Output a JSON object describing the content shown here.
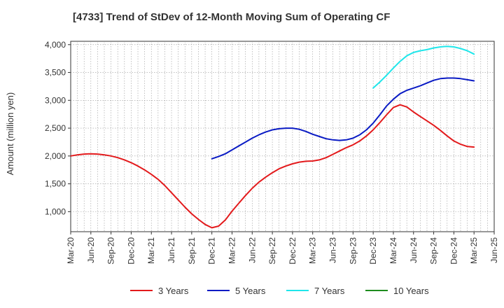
{
  "chart_data": {
    "type": "line",
    "title": "[4733]  Trend of StDev of 12-Month Moving Sum of Operating CF",
    "xlabel": "",
    "ylabel": "Amount (million yen)",
    "ylim": [
      640,
      4060
    ],
    "yticks": [
      1000,
      1500,
      2000,
      2500,
      3000,
      3500,
      4000
    ],
    "ytick_labels": [
      "1,000",
      "1,500",
      "2,000",
      "2,500",
      "3,000",
      "3,500",
      "4,000"
    ],
    "xticks": [
      "Mar-20",
      "Jun-20",
      "Sep-20",
      "Dec-20",
      "Mar-21",
      "Jun-21",
      "Sep-21",
      "Dec-21",
      "Mar-22",
      "Jun-22",
      "Sep-22",
      "Dec-22",
      "Mar-23",
      "Jun-23",
      "Sep-23",
      "Dec-23",
      "Mar-24",
      "Jun-24",
      "Sep-24",
      "Dec-24",
      "Mar-25",
      "Jun-25"
    ],
    "grid": true,
    "legend_position": "bottom",
    "series": [
      {
        "name": "3 Years",
        "color": "#e31a1c",
        "x": [
          "Mar-20",
          "Apr-20",
          "May-20",
          "Jun-20",
          "Jul-20",
          "Aug-20",
          "Sep-20",
          "Oct-20",
          "Nov-20",
          "Dec-20",
          "Jan-21",
          "Feb-21",
          "Mar-21",
          "Apr-21",
          "May-21",
          "Jun-21",
          "Jul-21",
          "Aug-21",
          "Sep-21",
          "Oct-21",
          "Nov-21",
          "Dec-21",
          "Jan-22",
          "Feb-22",
          "Mar-22",
          "Apr-22",
          "May-22",
          "Jun-22",
          "Jul-22",
          "Aug-22",
          "Sep-22",
          "Oct-22",
          "Nov-22",
          "Dec-22",
          "Jan-23",
          "Feb-23",
          "Mar-23",
          "Apr-23",
          "May-23",
          "Jun-23",
          "Jul-23",
          "Aug-23",
          "Sep-23",
          "Oct-23",
          "Nov-23",
          "Dec-23",
          "Jan-24",
          "Feb-24",
          "Mar-24",
          "Apr-24",
          "May-24",
          "Jun-24",
          "Jul-24",
          "Aug-24",
          "Sep-24",
          "Oct-24",
          "Nov-24",
          "Dec-24",
          "Jan-25",
          "Feb-25",
          "Mar-25"
        ],
        "values": [
          2000,
          2020,
          2035,
          2040,
          2035,
          2020,
          2000,
          1970,
          1930,
          1880,
          1820,
          1750,
          1670,
          1580,
          1470,
          1340,
          1210,
          1080,
          960,
          860,
          770,
          710,
          740,
          850,
          1010,
          1150,
          1290,
          1420,
          1530,
          1620,
          1700,
          1770,
          1820,
          1860,
          1890,
          1905,
          1910,
          1930,
          1970,
          2030,
          2090,
          2150,
          2200,
          2270,
          2360,
          2470,
          2600,
          2740,
          2870,
          2920,
          2880,
          2790,
          2710,
          2630,
          2550,
          2460,
          2360,
          2270,
          2210,
          2170,
          2160
        ]
      },
      {
        "name": "5 Years",
        "color": "#0a1bc4",
        "x": [
          "Dec-21",
          "Jan-22",
          "Feb-22",
          "Mar-22",
          "Apr-22",
          "May-22",
          "Jun-22",
          "Jul-22",
          "Aug-22",
          "Sep-22",
          "Oct-22",
          "Nov-22",
          "Dec-22",
          "Jan-23",
          "Feb-23",
          "Mar-23",
          "Apr-23",
          "May-23",
          "Jun-23",
          "Jul-23",
          "Aug-23",
          "Sep-23",
          "Oct-23",
          "Nov-23",
          "Dec-23",
          "Jan-24",
          "Feb-24",
          "Mar-24",
          "Apr-24",
          "May-24",
          "Jun-24",
          "Jul-24",
          "Aug-24",
          "Sep-24",
          "Oct-24",
          "Nov-24",
          "Dec-24",
          "Jan-25",
          "Feb-25",
          "Mar-25"
        ],
        "values": [
          1950,
          1990,
          2040,
          2110,
          2180,
          2250,
          2320,
          2380,
          2430,
          2470,
          2490,
          2500,
          2500,
          2480,
          2440,
          2390,
          2350,
          2310,
          2290,
          2280,
          2290,
          2320,
          2380,
          2470,
          2590,
          2740,
          2900,
          3020,
          3120,
          3180,
          3220,
          3260,
          3310,
          3360,
          3390,
          3400,
          3400,
          3390,
          3370,
          3350
        ]
      },
      {
        "name": "7 Years",
        "color": "#1fe6ea",
        "x": [
          "Dec-23",
          "Jan-24",
          "Feb-24",
          "Mar-24",
          "Apr-24",
          "May-24",
          "Jun-24",
          "Jul-24",
          "Aug-24",
          "Sep-24",
          "Oct-24",
          "Nov-24",
          "Dec-24",
          "Jan-25",
          "Feb-25",
          "Mar-25"
        ],
        "values": [
          3220,
          3330,
          3450,
          3580,
          3700,
          3800,
          3860,
          3890,
          3910,
          3940,
          3960,
          3970,
          3960,
          3930,
          3890,
          3830
        ]
      },
      {
        "name": "10 Years",
        "color": "#1e8c1e",
        "x": [],
        "values": []
      }
    ]
  }
}
